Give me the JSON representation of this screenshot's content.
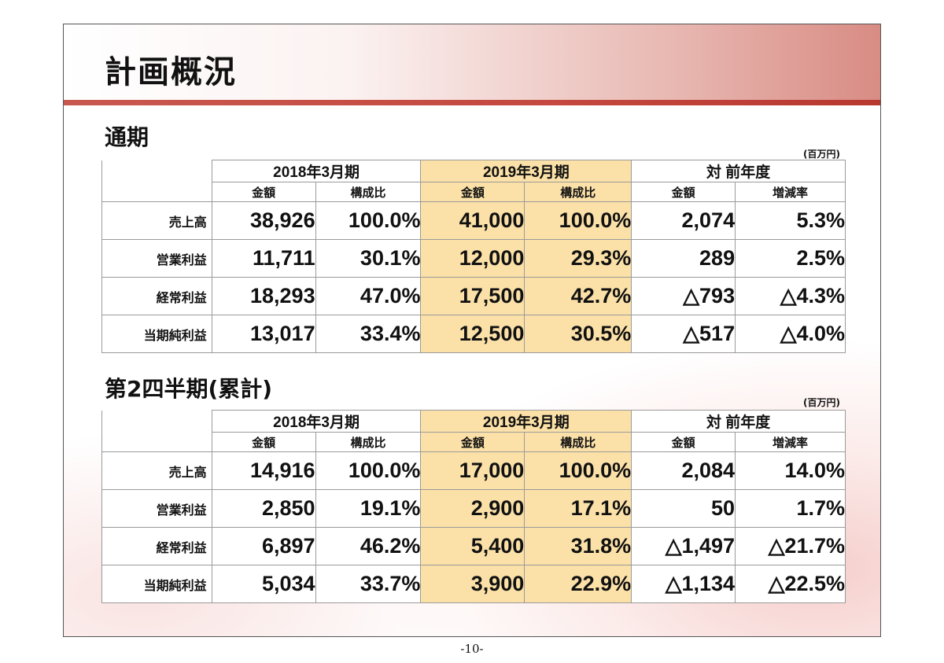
{
  "page_title": "計画概況",
  "unit": "(百万円)",
  "page_number": "-10-",
  "tables": [
    {
      "section": "通期",
      "periods": [
        "2018年3月期",
        "2019年3月期",
        "対 前年度"
      ],
      "subheaders": [
        "金額",
        "構成比",
        "金額",
        "構成比",
        "金額",
        "増減率"
      ],
      "rows": [
        {
          "label": "売上高",
          "values": [
            "38,926",
            "100.0%",
            "41,000",
            "100.0%",
            "2,074",
            "5.3%"
          ]
        },
        {
          "label": "営業利益",
          "values": [
            "11,711",
            "30.1%",
            "12,000",
            "29.3%",
            "289",
            "2.5%"
          ]
        },
        {
          "label": "経常利益",
          "values": [
            "18,293",
            "47.0%",
            "17,500",
            "42.7%",
            "△793",
            "△4.3%"
          ]
        },
        {
          "label": "当期純利益",
          "values": [
            "13,017",
            "33.4%",
            "12,500",
            "30.5%",
            "△517",
            "△4.0%"
          ]
        }
      ]
    },
    {
      "section": "第2四半期(累計)",
      "periods": [
        "2018年3月期",
        "2019年3月期",
        "対 前年度"
      ],
      "subheaders": [
        "金額",
        "構成比",
        "金額",
        "構成比",
        "金額",
        "増減率"
      ],
      "rows": [
        {
          "label": "売上高",
          "values": [
            "14,916",
            "100.0%",
            "17,000",
            "100.0%",
            "2,084",
            "14.0%"
          ]
        },
        {
          "label": "営業利益",
          "values": [
            "2,850",
            "19.1%",
            "2,900",
            "17.1%",
            "50",
            "1.7%"
          ]
        },
        {
          "label": "経常利益",
          "values": [
            "6,897",
            "46.2%",
            "5,400",
            "31.8%",
            "△1,497",
            "△21.7%"
          ]
        },
        {
          "label": "当期純利益",
          "values": [
            "5,034",
            "33.7%",
            "3,900",
            "22.9%",
            "△1,134",
            "△22.5%"
          ]
        }
      ]
    }
  ],
  "colors": {
    "highlight": "#fbe1a8",
    "accent": "#c4483f"
  }
}
